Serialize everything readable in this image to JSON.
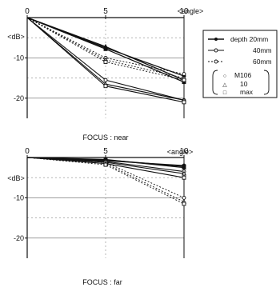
{
  "chart_data": [
    {
      "type": "line",
      "title": "FOCUS : near",
      "xlabel": "<angle>",
      "ylabel": "<dB>",
      "x_ticks": [
        "0",
        "5",
        "10"
      ],
      "y_ticks": [
        "0",
        "-10",
        "-20"
      ],
      "xlim": [
        0,
        10
      ],
      "ylim": [
        -25,
        0
      ],
      "grid": true,
      "legend": {
        "position": "right",
        "depth_entries": [
          "depth 20mm",
          "40mm",
          "60mm"
        ],
        "marker_entries": [
          {
            "symbol": "○",
            "label": "M106"
          },
          {
            "symbol": "△",
            "label": "10"
          },
          {
            "symbol": "□",
            "label": "max"
          }
        ]
      },
      "series": [
        {
          "group": "depth 20mm",
          "marker": "circle",
          "dash": "solid",
          "x": [
            0,
            5,
            10
          ],
          "y": [
            0,
            -7.5,
            -14.5
          ]
        },
        {
          "group": "depth 20mm",
          "marker": "triangle",
          "dash": "solid",
          "x": [
            0,
            5,
            10
          ],
          "y": [
            0,
            -7.2,
            -15.5
          ]
        },
        {
          "group": "depth 20mm",
          "marker": "square",
          "dash": "solid",
          "x": [
            0,
            5,
            10
          ],
          "y": [
            0,
            -7.8,
            -16.0
          ]
        },
        {
          "group": "40mm",
          "marker": "circle",
          "dash": "solid",
          "x": [
            0,
            5,
            10
          ],
          "y": [
            0,
            -15.5,
            -20.5
          ]
        },
        {
          "group": "40mm",
          "marker": "triangle",
          "dash": "solid",
          "x": [
            0,
            5,
            10
          ],
          "y": [
            0,
            -16.5,
            -20.5
          ]
        },
        {
          "group": "40mm",
          "marker": "square",
          "dash": "solid",
          "x": [
            0,
            5,
            10
          ],
          "y": [
            0,
            -17.0,
            -21.0
          ]
        },
        {
          "group": "60mm",
          "marker": "circle",
          "dash": "dotted",
          "x": [
            0,
            5,
            10
          ],
          "y": [
            0,
            -10.0,
            -14.0
          ]
        },
        {
          "group": "60mm",
          "marker": "triangle",
          "dash": "dotted",
          "x": [
            0,
            5,
            10
          ],
          "y": [
            0,
            -10.5,
            -15.0
          ]
        },
        {
          "group": "60mm",
          "marker": "square",
          "dash": "dotted",
          "x": [
            0,
            5,
            10
          ],
          "y": [
            0,
            -11.0,
            -15.5
          ]
        }
      ]
    },
    {
      "type": "line",
      "title": "FOCUS : far",
      "xlabel": "<angle>",
      "ylabel": "<dB>",
      "x_ticks": [
        "0",
        "5",
        "10"
      ],
      "y_ticks": [
        "0",
        "-10",
        "-20"
      ],
      "xlim": [
        0,
        10
      ],
      "ylim": [
        -25,
        0
      ],
      "grid": true,
      "series": [
        {
          "group": "depth 20mm",
          "marker": "circle",
          "dash": "solid",
          "x": [
            0,
            5,
            10
          ],
          "y": [
            0,
            -0.8,
            -2.0
          ]
        },
        {
          "group": "depth 20mm",
          "marker": "triangle",
          "dash": "solid",
          "x": [
            0,
            5,
            10
          ],
          "y": [
            0,
            -0.5,
            -2.5
          ]
        },
        {
          "group": "depth 20mm",
          "marker": "square",
          "dash": "solid",
          "x": [
            0,
            5,
            10
          ],
          "y": [
            0,
            -0.6,
            -2.2
          ]
        },
        {
          "group": "40mm",
          "marker": "circle",
          "dash": "solid",
          "x": [
            0,
            5,
            10
          ],
          "y": [
            0,
            -1.0,
            -3.5
          ]
        },
        {
          "group": "40mm",
          "marker": "triangle",
          "dash": "solid",
          "x": [
            0,
            5,
            10
          ],
          "y": [
            0,
            -1.2,
            -4.0
          ]
        },
        {
          "group": "40mm",
          "marker": "square",
          "dash": "solid",
          "x": [
            0,
            5,
            10
          ],
          "y": [
            0,
            -1.5,
            -5.0
          ]
        },
        {
          "group": "60mm",
          "marker": "circle",
          "dash": "dotted",
          "x": [
            0,
            5,
            10
          ],
          "y": [
            0,
            -1.2,
            -10.0
          ]
        },
        {
          "group": "60mm",
          "marker": "triangle",
          "dash": "dotted",
          "x": [
            0,
            5,
            10
          ],
          "y": [
            0,
            -1.5,
            -11.0
          ]
        },
        {
          "group": "60mm",
          "marker": "square",
          "dash": "dotted",
          "x": [
            0,
            5,
            10
          ],
          "y": [
            0,
            -1.8,
            -11.5
          ]
        }
      ]
    }
  ]
}
